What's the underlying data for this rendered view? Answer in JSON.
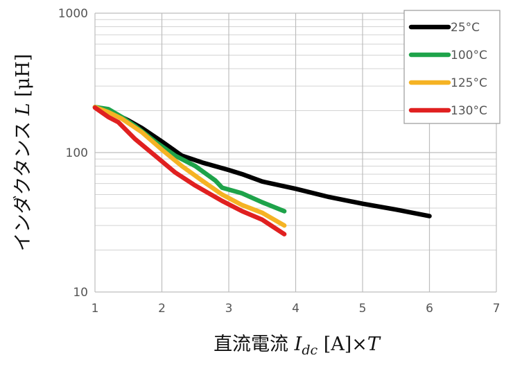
{
  "chart_data": {
    "type": "line",
    "title": "",
    "xlabel": "直流電流 I_dc [A]×T",
    "xlabel_parts": {
      "main": "直流電流 ",
      "var": "I",
      "sub": "dc",
      "tail": " [A]×",
      "var2": "T"
    },
    "ylabel": "インダクタンス L [μH]",
    "ylabel_parts": {
      "main": "インダクタンス ",
      "var": "L",
      "tail": " [μH]"
    },
    "xlim": [
      1,
      7
    ],
    "ylim": [
      10,
      1000
    ],
    "yscale": "log",
    "grid": true,
    "legend_position": "top-right",
    "x_ticks": [
      "1",
      "2",
      "3",
      "4",
      "5",
      "6",
      "7"
    ],
    "y_ticks": [
      "10",
      "100",
      "1000"
    ],
    "series": [
      {
        "name": "25°C",
        "color": "#000000",
        "x": [
          1.0,
          1.2,
          1.5,
          1.7,
          2.0,
          2.3,
          2.6,
          3.0,
          3.2,
          3.5,
          4.0,
          4.5,
          5.0,
          5.5,
          6.0
        ],
        "y": [
          212,
          200,
          170,
          150,
          120,
          95,
          85,
          75,
          70,
          62,
          55,
          48,
          43,
          39,
          35
        ]
      },
      {
        "name": "100°C",
        "color": "#1ea34a",
        "x": [
          1.0,
          1.2,
          1.4,
          1.6,
          1.9,
          2.2,
          2.5,
          2.8,
          2.9,
          3.2,
          3.5,
          3.83
        ],
        "y": [
          212,
          205,
          180,
          155,
          120,
          95,
          80,
          63,
          56,
          51,
          44,
          38
        ]
      },
      {
        "name": "125°C",
        "color": "#f5b324",
        "x": [
          1.0,
          1.2,
          1.4,
          1.7,
          2.0,
          2.3,
          2.6,
          2.9,
          3.2,
          3.5,
          3.83
        ],
        "y": [
          212,
          195,
          175,
          140,
          105,
          80,
          63,
          50,
          42,
          37,
          30
        ]
      },
      {
        "name": "130°C",
        "color": "#e02020",
        "x": [
          1.0,
          1.2,
          1.35,
          1.6,
          1.9,
          2.2,
          2.5,
          2.9,
          3.2,
          3.5,
          3.83
        ],
        "y": [
          210,
          180,
          165,
          125,
          95,
          72,
          58,
          45,
          38,
          33,
          26
        ]
      }
    ]
  }
}
